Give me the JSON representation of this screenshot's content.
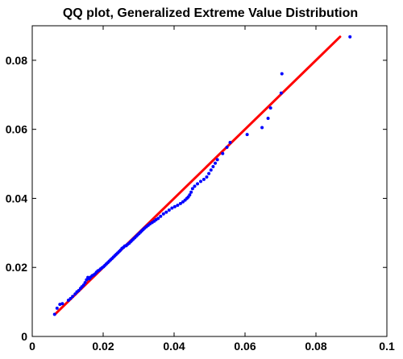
{
  "chart_data": {
    "type": "scatter",
    "title": "QQ plot, Generalized Extreme Value Distribution",
    "xlabel": "",
    "ylabel": "",
    "xlim": [
      0,
      0.1
    ],
    "ylim": [
      0,
      0.09
    ],
    "xticks": [
      0,
      0.02,
      0.04,
      0.06,
      0.08,
      0.1
    ],
    "xtick_labels": [
      "0",
      "0.02",
      "0.04",
      "0.06",
      "0.08",
      "0.1"
    ],
    "yticks": [
      0,
      0.02,
      0.04,
      0.06,
      0.08
    ],
    "ytick_labels": [
      "0",
      "0.02",
      "0.04",
      "0.06",
      "0.08"
    ],
    "grid": false,
    "colors": {
      "points": "#0000ff",
      "reference_line": "#ff0000"
    },
    "reference_line": {
      "x": [
        0.0064,
        0.0868
      ],
      "y": [
        0.0064,
        0.0868
      ]
    },
    "series": [
      {
        "x": [
          0.0063,
          0.007,
          0.0078,
          0.0085,
          0.0102,
          0.0108,
          0.0114,
          0.0121,
          0.0126,
          0.0131,
          0.0136,
          0.014,
          0.0145,
          0.0149,
          0.0153,
          0.0157,
          0.0161,
          0.0165,
          0.0169,
          0.0173,
          0.0177,
          0.0181,
          0.0185,
          0.0189,
          0.0193,
          0.0197,
          0.0201,
          0.0205,
          0.0209,
          0.0213,
          0.0217,
          0.0221,
          0.0225,
          0.0229,
          0.0233,
          0.0237,
          0.0241,
          0.0245,
          0.0249,
          0.0253,
          0.0257,
          0.0261,
          0.0265,
          0.0269,
          0.0273,
          0.0277,
          0.0281,
          0.0285,
          0.0289,
          0.0293,
          0.0297,
          0.0301,
          0.0305,
          0.0309,
          0.0313,
          0.0317,
          0.0322,
          0.0327,
          0.0332,
          0.0338,
          0.0344,
          0.0349,
          0.0355,
          0.0362,
          0.037,
          0.0378,
          0.0386,
          0.0394,
          0.0402,
          0.041,
          0.0418,
          0.0425,
          0.0431,
          0.0436,
          0.044,
          0.0444,
          0.0448,
          0.0452,
          0.0458,
          0.0466,
          0.0475,
          0.0484,
          0.0492,
          0.0498,
          0.0504,
          0.051,
          0.0516,
          0.0522,
          0.0537,
          0.0549,
          0.0558,
          0.0606,
          0.0648,
          0.0665,
          0.0672,
          0.0702,
          0.0704,
          0.0896
        ],
        "y": [
          0.0064,
          0.0082,
          0.0093,
          0.0095,
          0.0105,
          0.011,
          0.0116,
          0.0123,
          0.0129,
          0.0133,
          0.0139,
          0.0144,
          0.0149,
          0.0156,
          0.0164,
          0.0171,
          0.0167,
          0.0172,
          0.0176,
          0.0178,
          0.0181,
          0.0186,
          0.019,
          0.0192,
          0.0196,
          0.0199,
          0.0202,
          0.0206,
          0.021,
          0.0214,
          0.0218,
          0.0222,
          0.0226,
          0.023,
          0.0234,
          0.0238,
          0.0242,
          0.0246,
          0.025,
          0.0255,
          0.0258,
          0.0262,
          0.0263,
          0.0267,
          0.027,
          0.0274,
          0.0278,
          0.0282,
          0.0286,
          0.029,
          0.0294,
          0.0298,
          0.0302,
          0.0306,
          0.031,
          0.0314,
          0.0318,
          0.0322,
          0.0326,
          0.033,
          0.0334,
          0.0338,
          0.0342,
          0.0348,
          0.0355,
          0.036,
          0.0366,
          0.0372,
          0.0376,
          0.038,
          0.0385,
          0.039,
          0.0395,
          0.04,
          0.0404,
          0.041,
          0.0418,
          0.0428,
          0.0435,
          0.0442,
          0.0449,
          0.0455,
          0.0462,
          0.0472,
          0.0482,
          0.0492,
          0.0502,
          0.0512,
          0.053,
          0.0548,
          0.0562,
          0.0585,
          0.0605,
          0.0632,
          0.0662,
          0.0705,
          0.0761,
          0.0868
        ]
      }
    ]
  }
}
